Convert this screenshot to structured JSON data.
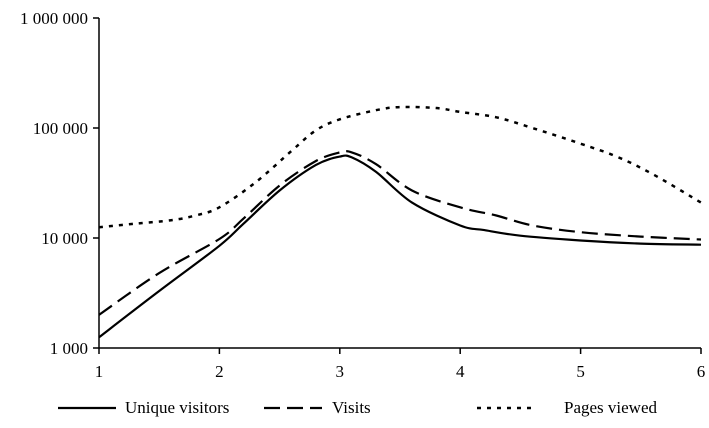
{
  "chart_data": {
    "type": "line",
    "title": "",
    "xlabel": "",
    "ylabel": "",
    "yscale": "log",
    "xlim": [
      1,
      6
    ],
    "ylim": [
      1000,
      1000000
    ],
    "grid": false,
    "legend_position": "bottom",
    "x_ticks": [
      "1",
      "2",
      "3",
      "4",
      "5",
      "6"
    ],
    "y_ticks": [
      {
        "value": 1000,
        "label": "1 000"
      },
      {
        "value": 10000,
        "label": "10 000"
      },
      {
        "value": 100000,
        "label": "100 000"
      },
      {
        "value": 1000000,
        "label": "1 000 000"
      }
    ],
    "series": [
      {
        "name": "Unique visitors",
        "style": "solid",
        "color": "#000000",
        "points": [
          [
            1,
            1250
          ],
          [
            1.5,
            3300
          ],
          [
            2,
            8500
          ],
          [
            2.2,
            13500
          ],
          [
            2.5,
            27000
          ],
          [
            2.8,
            46000
          ],
          [
            3,
            55000
          ],
          [
            3.1,
            54000
          ],
          [
            3.3,
            40000
          ],
          [
            3.6,
            21000
          ],
          [
            4,
            13000
          ],
          [
            4.2,
            11800
          ],
          [
            4.5,
            10500
          ],
          [
            5,
            9500
          ],
          [
            5.5,
            8900
          ],
          [
            6,
            8700
          ]
        ]
      },
      {
        "name": "Visits",
        "style": "dashed",
        "color": "#000000",
        "points": [
          [
            1,
            2000
          ],
          [
            1.5,
            4800
          ],
          [
            2,
            9800
          ],
          [
            2.2,
            15000
          ],
          [
            2.5,
            30000
          ],
          [
            2.8,
            50000
          ],
          [
            3,
            60000
          ],
          [
            3.1,
            60000
          ],
          [
            3.3,
            47000
          ],
          [
            3.6,
            27000
          ],
          [
            4,
            19000
          ],
          [
            4.3,
            16000
          ],
          [
            4.6,
            13000
          ],
          [
            5,
            11300
          ],
          [
            5.5,
            10300
          ],
          [
            6,
            9700
          ]
        ]
      },
      {
        "name": "Pages viewed",
        "style": "dotted",
        "color": "#000000",
        "points": [
          [
            1,
            12500
          ],
          [
            1.3,
            13500
          ],
          [
            1.6,
            14500
          ],
          [
            1.8,
            16000
          ],
          [
            2,
            19000
          ],
          [
            2.3,
            32000
          ],
          [
            2.6,
            62000
          ],
          [
            2.8,
            95000
          ],
          [
            3,
            120000
          ],
          [
            3.3,
            145000
          ],
          [
            3.5,
            155000
          ],
          [
            3.8,
            152000
          ],
          [
            4,
            140000
          ],
          [
            4.3,
            125000
          ],
          [
            4.6,
            100000
          ],
          [
            5,
            72000
          ],
          [
            5.3,
            55000
          ],
          [
            5.6,
            38000
          ],
          [
            6,
            21000
          ]
        ]
      }
    ]
  }
}
